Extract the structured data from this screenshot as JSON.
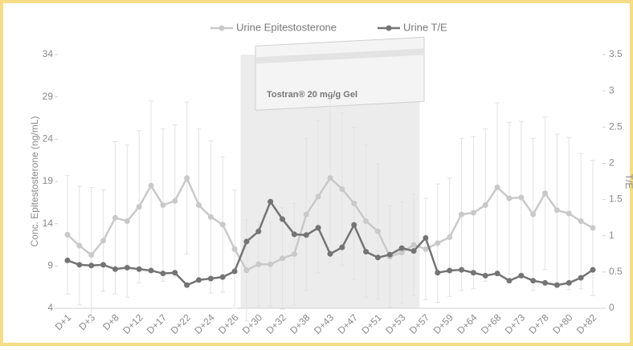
{
  "chart_data": {
    "type": "line",
    "ylabel": "Conc. Epitestosterone (ng/mL)",
    "y2label": "T/E",
    "annotation": "Tostran® 20 mg/g Gel",
    "categories": [
      "D+1",
      null,
      "D+3",
      null,
      "D+8",
      null,
      "D+12",
      null,
      "D+17",
      null,
      "D+22",
      null,
      "D+24",
      null,
      "D+26",
      null,
      "D+30",
      null,
      "D+32",
      null,
      "D+38",
      null,
      "D+43",
      null,
      "D+47",
      null,
      "D+51",
      null,
      "D+53",
      null,
      "D+57",
      null,
      "D+59",
      null,
      "D+64",
      null,
      "D+68",
      null,
      "D+73",
      null,
      "D+78",
      null,
      "D+80",
      null,
      "D+82"
    ],
    "ylim": [
      4,
      34
    ],
    "yticks": [
      4,
      9,
      14,
      19,
      24,
      29,
      34
    ],
    "y2lim": [
      0,
      3.5
    ],
    "y2ticks": [
      0,
      0.5,
      1,
      1.5,
      2,
      2.5,
      3,
      3.5
    ],
    "series": [
      {
        "name": "Urine Epitestosterone",
        "color": "#c9c9c9",
        "values": [
          12.7,
          11.4,
          10.3,
          12.0,
          14.7,
          14.3,
          16.0,
          18.5,
          16.2,
          16.7,
          19.4,
          16.2,
          14.8,
          13.9,
          11.0,
          8.5,
          9.2,
          9.2,
          9.9,
          10.4,
          15.1,
          17.2,
          19.4,
          18.1,
          16.4,
          14.3,
          13.1,
          10.1,
          10.6,
          11.5,
          11.0,
          11.7,
          12.4,
          15.1,
          15.3,
          16.2,
          18.3,
          17.0,
          17.1,
          15.1,
          17.6,
          15.6,
          15.2,
          14.3,
          13.5
        ],
        "errors": [
          7,
          7,
          8,
          6,
          9,
          9,
          9,
          10,
          9,
          9,
          9,
          9,
          9,
          8,
          7,
          6,
          5,
          5,
          6,
          6,
          9,
          9,
          10,
          9,
          9,
          9,
          8,
          6,
          6,
          6,
          6,
          7,
          7,
          9,
          9,
          9,
          10,
          9,
          9,
          9,
          9,
          9,
          9,
          8,
          8
        ]
      },
      {
        "name": "Urine T/E",
        "color": "#747474",
        "axis": "y2",
        "values": [
          0.66,
          0.6,
          0.59,
          0.6,
          0.54,
          0.56,
          0.54,
          0.52,
          0.48,
          0.49,
          0.32,
          0.39,
          0.41,
          0.43,
          0.51,
          0.92,
          1.06,
          1.47,
          1.23,
          1.02,
          1.01,
          1.11,
          0.75,
          0.84,
          1.15,
          0.78,
          0.7,
          0.74,
          0.83,
          0.79,
          0.97,
          0.49,
          0.52,
          0.53,
          0.49,
          0.45,
          0.48,
          0.38,
          0.45,
          0.38,
          0.35,
          0.32,
          0.35,
          0.42,
          0.53
        ]
      }
    ]
  }
}
